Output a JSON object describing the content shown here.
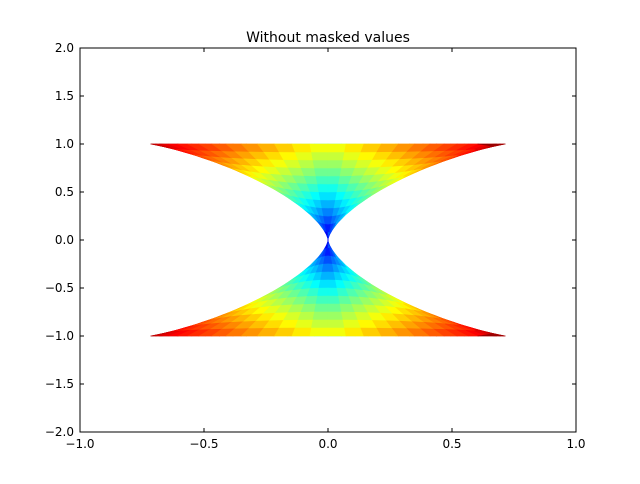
{
  "chart_data": {
    "type": "pcolormesh",
    "title": "Without masked values",
    "xlabel": "",
    "ylabel": "",
    "xlim": [
      -1.0,
      1.0
    ],
    "ylim": [
      -2.0,
      2.0
    ],
    "xticks": [
      -1.0,
      -0.5,
      0.0,
      0.5,
      1.0
    ],
    "xtick_labels": [
      "−1.0",
      "−0.5",
      "0.0",
      "0.5",
      "1.0"
    ],
    "yticks": [
      -2.0,
      -1.5,
      -1.0,
      -0.5,
      0.0,
      0.5,
      1.0,
      1.5,
      2.0
    ],
    "ytick_labels": [
      "−2.0",
      "−1.5",
      "−1.0",
      "−0.5",
      "0.0",
      "0.5",
      "1.0",
      "1.5",
      "2.0"
    ],
    "grid": false,
    "colormap": "jet",
    "surface": {
      "description": "polar quadrilateral mesh (x = r·sinθ·cosθ-like lobes, y = r·cosθ-like), colored by Z",
      "r_range": [
        0.0,
        1.0
      ],
      "lobes": [
        {
          "name": "upper",
          "center": [
            0.0,
            1.0
          ]
        },
        {
          "name": "lower",
          "center": [
            0.0,
            -1.0
          ]
        }
      ],
      "z_range_color": [
        "#00007f",
        "#7f0000"
      ]
    }
  }
}
